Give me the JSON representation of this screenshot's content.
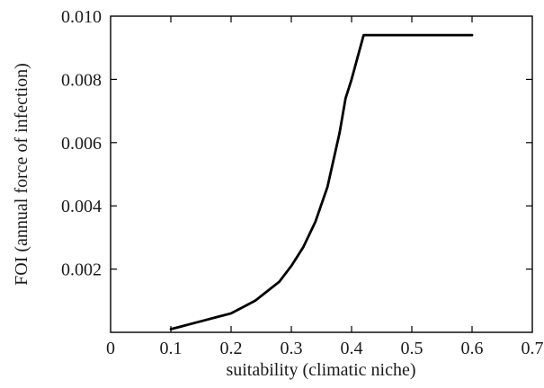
{
  "chart_data": {
    "type": "line",
    "title": "",
    "xlabel": "suitability (climatic niche)",
    "ylabel": "FOI (annual force of infection)",
    "xlim": [
      0,
      0.7
    ],
    "ylim": [
      0,
      0.01
    ],
    "grid": false,
    "x_ticks": [
      0,
      0.1,
      0.2,
      0.3,
      0.4,
      0.5,
      0.6,
      0.7
    ],
    "x_tick_labels": [
      "0",
      "0.1",
      "0.2",
      "0.3",
      "0.4",
      "0.5",
      "0.6",
      "0.7"
    ],
    "y_ticks": [
      0.002,
      0.004,
      0.006,
      0.008,
      0.01
    ],
    "y_tick_labels": [
      "0.002",
      "0.004",
      "0.006",
      "0.008",
      "0.010"
    ],
    "series": [
      {
        "x": [
          0.1,
          0.12,
          0.14,
          0.16,
          0.18,
          0.2,
          0.22,
          0.24,
          0.26,
          0.28,
          0.3,
          0.32,
          0.34,
          0.36,
          0.38,
          0.39,
          0.4,
          0.41,
          0.42,
          0.44,
          0.5,
          0.6
        ],
        "y": [
          0.0001,
          0.0002,
          0.0003,
          0.0004,
          0.0005,
          0.0006,
          0.0008,
          0.001,
          0.0013,
          0.0016,
          0.0021,
          0.0027,
          0.0035,
          0.0046,
          0.0063,
          0.0074,
          0.008,
          0.0087,
          0.0094,
          0.0094,
          0.0094,
          0.0094
        ]
      }
    ]
  }
}
